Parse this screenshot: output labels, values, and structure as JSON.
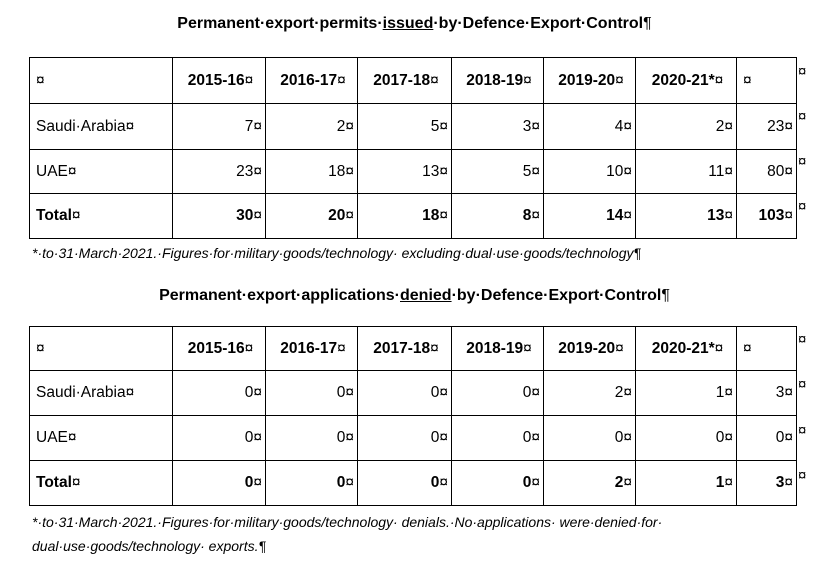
{
  "cell_mark": "¤",
  "para_mark": "¶",
  "table1": {
    "title_before": "Permanent·export·permits·",
    "title_underlined": "issued",
    "title_after": "·by·Defence·Export·Control",
    "header": [
      "",
      "2015-16",
      "2016-17",
      "2017-18",
      "2018-19",
      "2019-20",
      "2020-21*",
      ""
    ],
    "rows": [
      {
        "label": "Saudi·Arabia",
        "values": [
          "7",
          "2",
          "5",
          "3",
          "4",
          "2",
          "23"
        ]
      },
      {
        "label": "UAE",
        "values": [
          "23",
          "18",
          "13",
          "5",
          "10",
          "11",
          "80"
        ]
      },
      {
        "label": "Total",
        "values": [
          "30",
          "20",
          "18",
          "8",
          "14",
          "13",
          "103"
        ]
      }
    ],
    "note": "*·to·31·March·2021.·Figures·for·military·goods/technology· excluding·dual·use·goods/technology"
  },
  "table2": {
    "title_before": "Permanent·export·applications·",
    "title_underlined": "denied",
    "title_after": "·by·Defence·Export·Control",
    "header": [
      "",
      "2015-16",
      "2016-17",
      "2017-18",
      "2018-19",
      "2019-20",
      "2020-21*",
      ""
    ],
    "rows": [
      {
        "label": "Saudi·Arabia",
        "values": [
          "0",
          "0",
          "0",
          "0",
          "2",
          "1",
          "3"
        ]
      },
      {
        "label": "UAE",
        "values": [
          "0",
          "0",
          "0",
          "0",
          "0",
          "0",
          "0"
        ]
      },
      {
        "label": "Total",
        "values": [
          "0",
          "0",
          "0",
          "0",
          "2",
          "1",
          "3"
        ]
      }
    ],
    "note_line1": "*·to·31·March·2021.·Figures·for·military·goods/technology· denials.·No·applications· were·denied·for·",
    "note_line2": "dual·use·goods/technology· exports."
  }
}
